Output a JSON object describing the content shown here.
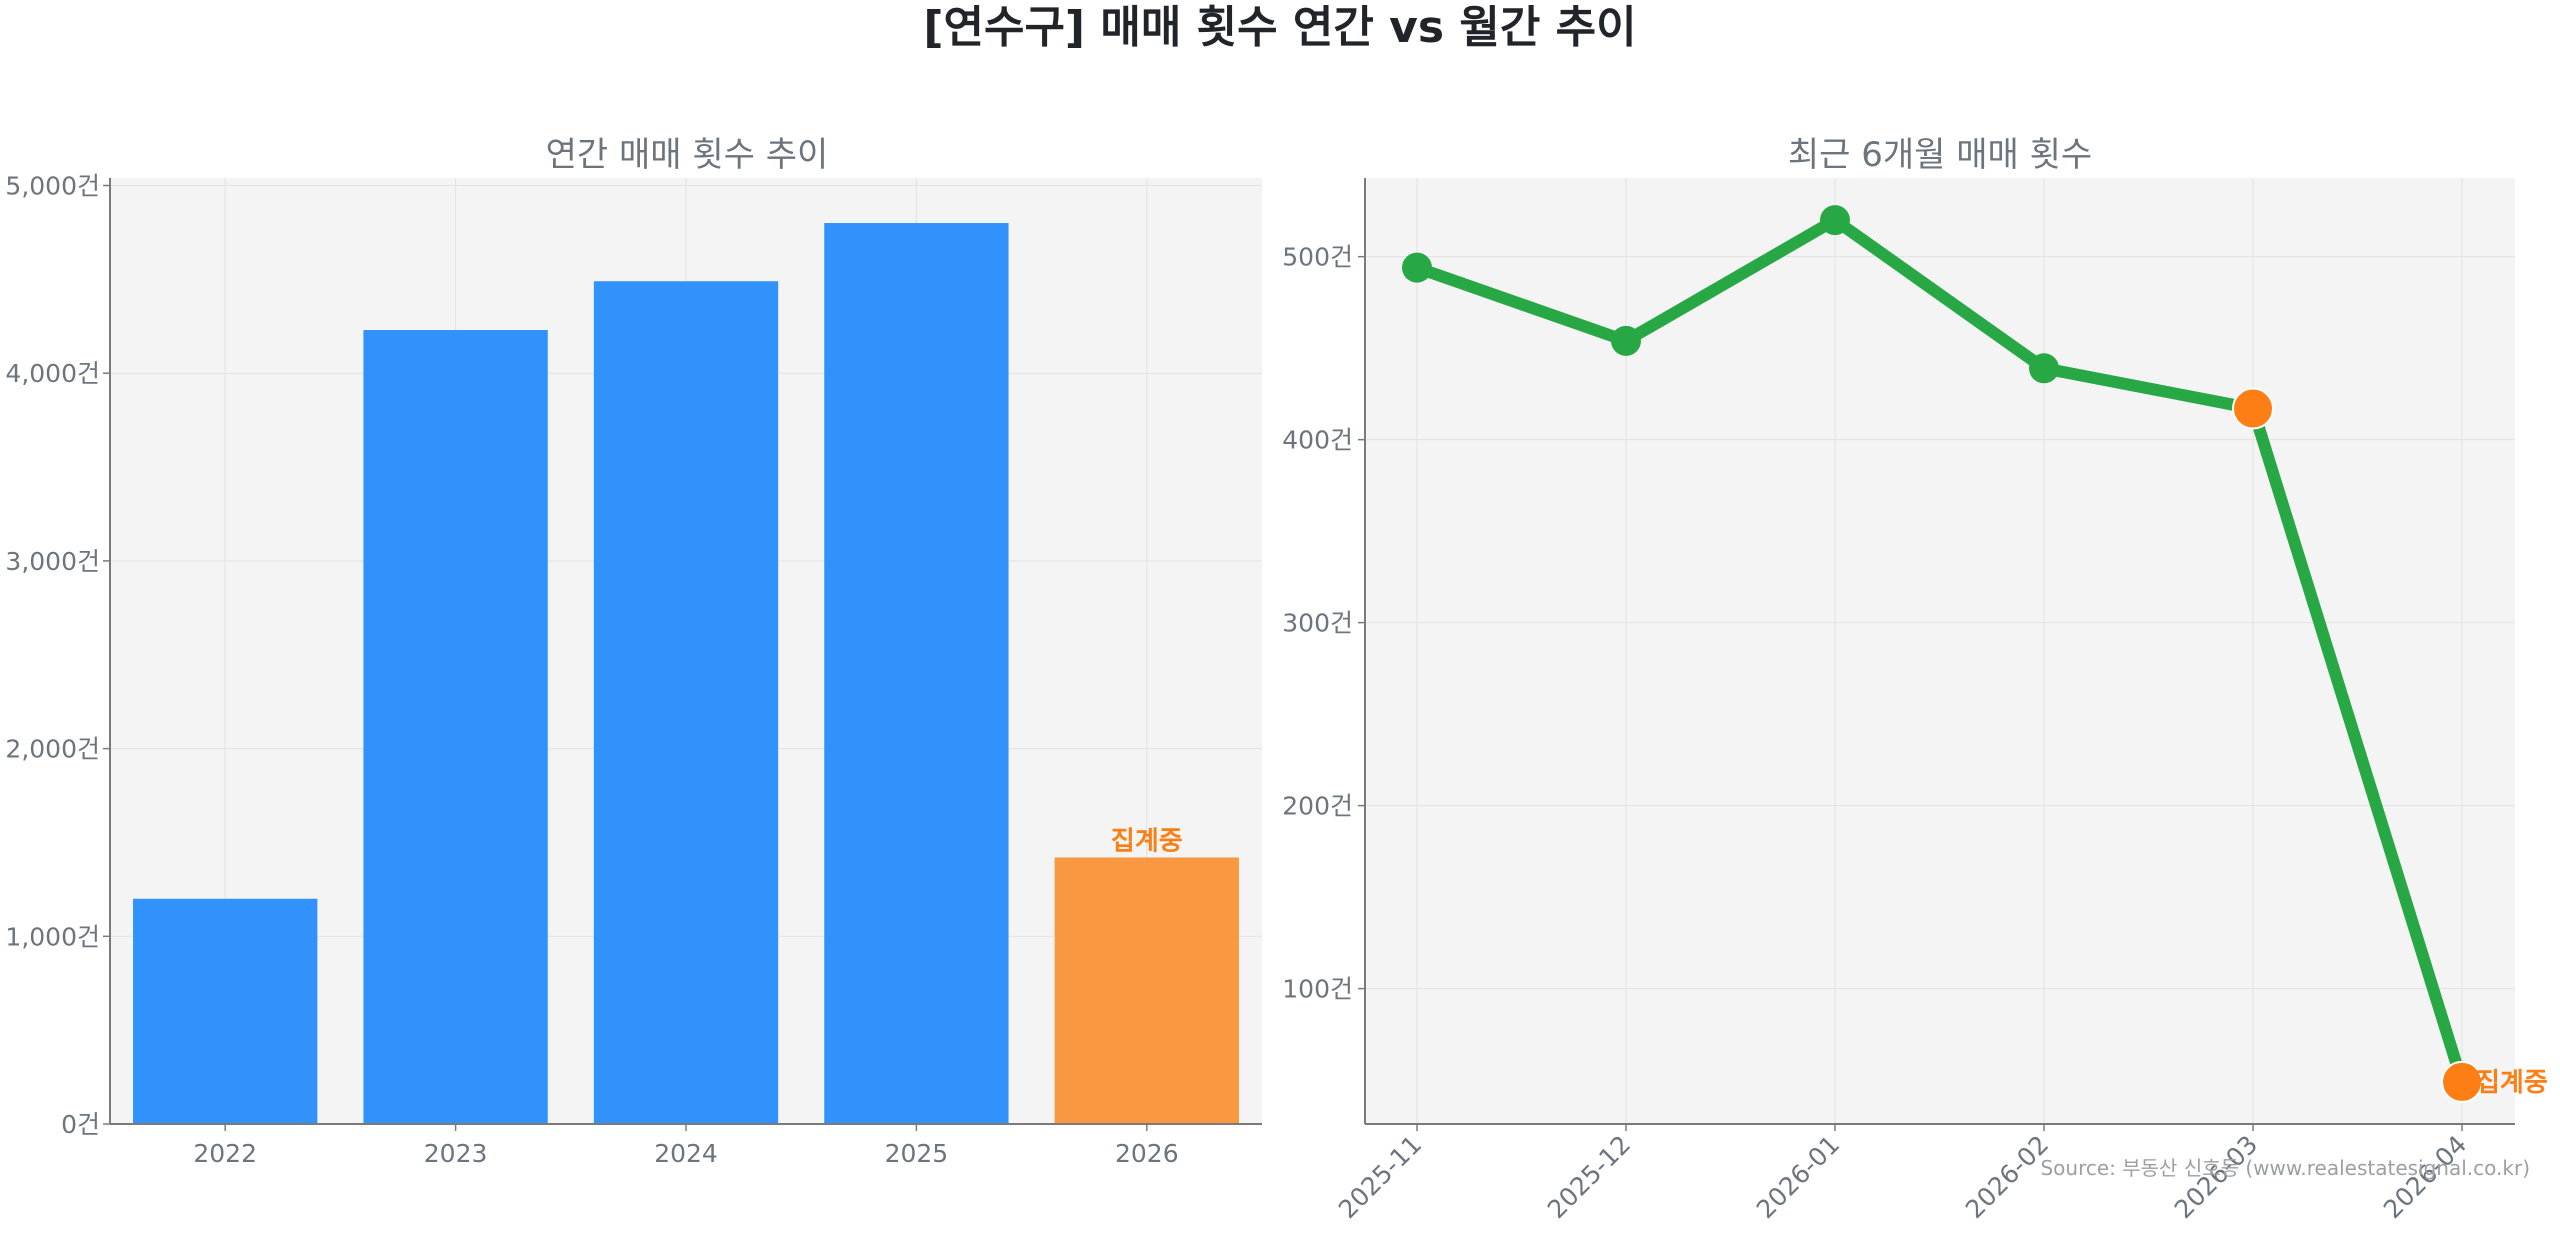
{
  "title": "[연수구] 매매 횟수 연간 vs 월간 추이",
  "source": "Source: 부동산 신호등 (www.realestatesignal.co.kr)",
  "colors": {
    "bar": "#3192fb",
    "bar_pending": "#f99841",
    "line": "#28a745",
    "marker_pending": "#fd7e14",
    "pending_text": "#fd7e14",
    "plot_bg": "#f4f4f4",
    "axis": "#7a7a7a",
    "text": "#6c757d",
    "title": "#212529",
    "grid": "#e2e2e2"
  },
  "chart_data": [
    {
      "type": "bar",
      "title": "연간 매매 횟수 추이",
      "categories": [
        "2022",
        "2023",
        "2024",
        "2025",
        "2026"
      ],
      "values": [
        1200,
        4230,
        4490,
        4800,
        1420
      ],
      "pending_index": 4,
      "pending_label": "집계중",
      "ylim": [
        0,
        5040
      ],
      "yticks": [
        0,
        1000,
        2000,
        3000,
        4000,
        5000
      ],
      "ytick_labels": [
        "0건",
        "1,000건",
        "2,000건",
        "3,000건",
        "4,000건",
        "5,000건"
      ],
      "grid": true
    },
    {
      "type": "line",
      "title": "최근 6개월 매매 횟수",
      "categories": [
        "2025-11",
        "2025-12",
        "2026-01",
        "2026-02",
        "2026-03",
        "2026-04"
      ],
      "values": [
        494,
        454,
        520,
        439,
        417,
        49
      ],
      "pending_indices": [
        4,
        5
      ],
      "pending_label": "집계중",
      "ylim": [
        26,
        543
      ],
      "yticks": [
        100,
        200,
        300,
        400,
        500
      ],
      "ytick_labels": [
        "100건",
        "200건",
        "300건",
        "400건",
        "500건"
      ],
      "grid": true
    }
  ]
}
